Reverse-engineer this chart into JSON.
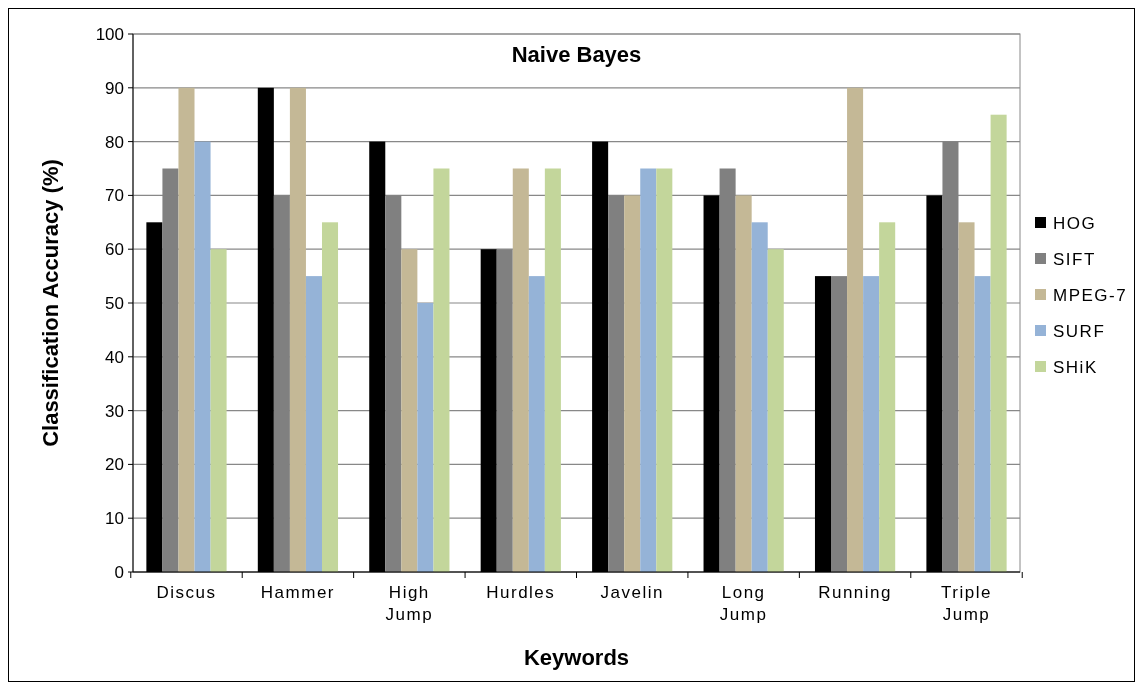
{
  "chart_data": {
    "type": "bar",
    "title": "Naive Bayes",
    "xlabel": "Keywords",
    "ylabel": "Classification Accuracy (%)",
    "categories": [
      "Discus",
      "Hammer",
      "High Jump",
      "Hurdles",
      "Javelin",
      "Long Jump",
      "Running",
      "Triple Jump"
    ],
    "series": [
      {
        "name": "HOG",
        "color": "#000000",
        "values": [
          65,
          90,
          80,
          60,
          80,
          70,
          55,
          70
        ]
      },
      {
        "name": "SIFT",
        "color": "#808080",
        "values": [
          75,
          70,
          70,
          60,
          70,
          75,
          55,
          80
        ]
      },
      {
        "name": "MPEG-7",
        "color": "#c4b896",
        "values": [
          90,
          90,
          60,
          75,
          70,
          70,
          90,
          65
        ]
      },
      {
        "name": "SURF",
        "color": "#95b3d7",
        "values": [
          80,
          55,
          50,
          55,
          75,
          65,
          55,
          55
        ]
      },
      {
        "name": "SHiK",
        "color": "#c3d69b",
        "values": [
          60,
          65,
          75,
          75,
          75,
          60,
          65,
          85
        ]
      }
    ],
    "ylim": [
      0,
      100
    ],
    "yticks": [
      0,
      10,
      20,
      30,
      40,
      50,
      60,
      70,
      80,
      90,
      100
    ],
    "grid": "y",
    "legend": "right"
  }
}
